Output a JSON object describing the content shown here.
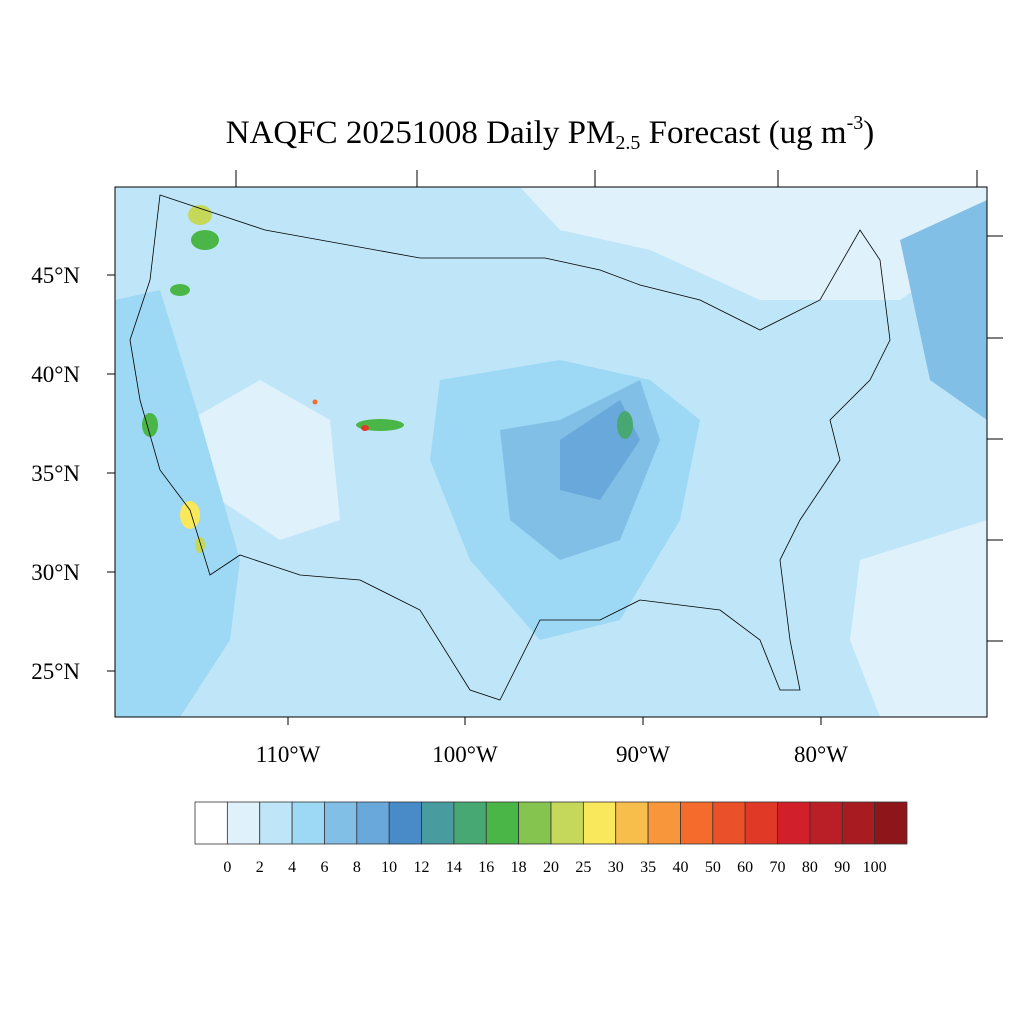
{
  "title": {
    "prefix": "NAQFC 20251008 Daily PM",
    "sub": "2.5",
    "mid": " Forecast (ug m",
    "sup": "-3",
    "suffix": ")"
  },
  "lat_labels": [
    "45°N",
    "40°N",
    "35°N",
    "30°N",
    "25°N"
  ],
  "lon_labels": [
    "110°W",
    "100°W",
    "90°W",
    "80°W"
  ],
  "colorbar": {
    "labels": [
      "0",
      "2",
      "4",
      "6",
      "8",
      "10",
      "12",
      "14",
      "16",
      "18",
      "20",
      "25",
      "30",
      "35",
      "40",
      "50",
      "60",
      "70",
      "80",
      "90",
      "100"
    ],
    "colors": [
      "#ffffff",
      "#dff1fb",
      "#bee6f8",
      "#9dd8f4",
      "#82bfe6",
      "#68a8da",
      "#478bc8",
      "#489b9f",
      "#48a873",
      "#4bb648",
      "#85c44e",
      "#c6d85a",
      "#f9e75c",
      "#f8be4b",
      "#f7963a",
      "#f46b2b",
      "#ea5129",
      "#e03a27",
      "#d12029",
      "#ba1e26",
      "#a81c21",
      "#8e161a"
    ]
  },
  "map_colors": {
    "background": "#bee6f8",
    "ocean_clean": "#dff1fb",
    "moderate": "#9dd8f4",
    "elevated": "#82bfe6",
    "high": "#68a8da"
  }
}
